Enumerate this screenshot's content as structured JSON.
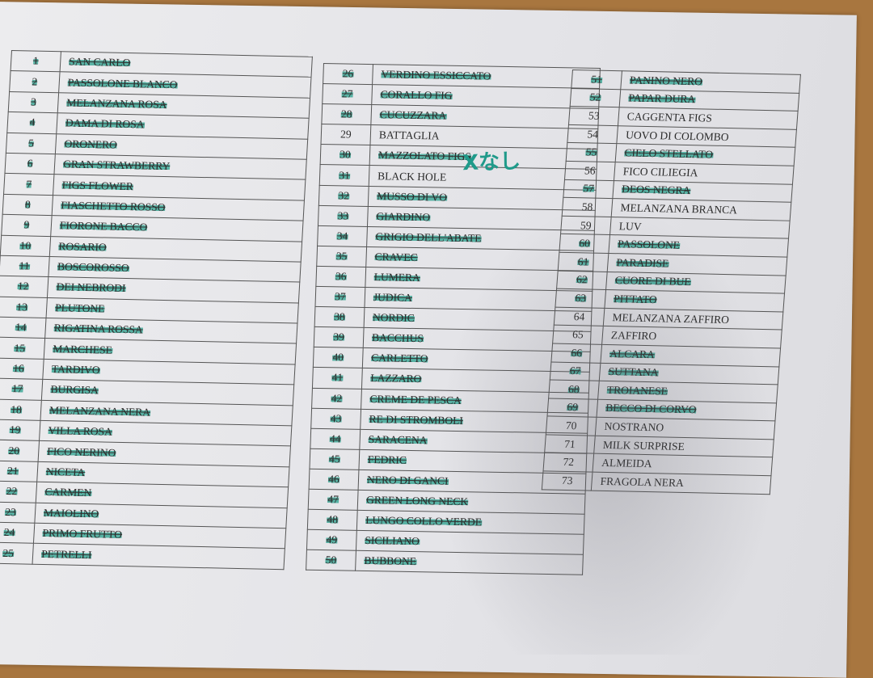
{
  "highlight_color": "#2aa08c",
  "annotation": "Xなし",
  "columns": [
    [
      {
        "n": "1",
        "name": "SAN CARLO",
        "hl": true
      },
      {
        "n": "2",
        "name": "PASSOLONE BLANCO",
        "hl": true
      },
      {
        "n": "3",
        "name": "MELANZANA ROSA",
        "hl": true
      },
      {
        "n": "4",
        "name": "DAMA DI ROSA",
        "hl": true
      },
      {
        "n": "5",
        "name": "ORONERO",
        "hl": true
      },
      {
        "n": "6",
        "name": "GRAN STRAWBERRY",
        "hl": true
      },
      {
        "n": "7",
        "name": "FIGS FLOWER",
        "hl": true
      },
      {
        "n": "8",
        "name": "FIASCHETTO ROSSO",
        "hl": true
      },
      {
        "n": "9",
        "name": "FIORONE BACCO",
        "hl": true
      },
      {
        "n": "10",
        "name": "ROSARIO",
        "hl": true
      },
      {
        "n": "11",
        "name": "BOSCOROSSO",
        "hl": true
      },
      {
        "n": "12",
        "name": "DEI NEBRODI",
        "hl": true
      },
      {
        "n": "13",
        "name": "PLUTONE",
        "hl": true
      },
      {
        "n": "14",
        "name": "RIGATINA ROSSA",
        "hl": true
      },
      {
        "n": "15",
        "name": "MARCHESE",
        "hl": true
      },
      {
        "n": "16",
        "name": "TARDIVO",
        "hl": true
      },
      {
        "n": "17",
        "name": "BURGISA",
        "hl": true
      },
      {
        "n": "18",
        "name": "MELANZANA NERA",
        "hl": true
      },
      {
        "n": "19",
        "name": "VILLA ROSA",
        "hl": true
      },
      {
        "n": "20",
        "name": "FICO NERINO",
        "hl": true
      },
      {
        "n": "21",
        "name": "NICETA",
        "hl": true
      },
      {
        "n": "22",
        "name": "CARMEN",
        "hl": true
      },
      {
        "n": "23",
        "name": "MAIOLINO",
        "hl": true
      },
      {
        "n": "24",
        "name": "PRIMO FRUTTO",
        "hl": true
      },
      {
        "n": "25",
        "name": "PETRELLI",
        "hl": true
      }
    ],
    [
      {
        "n": "26",
        "name": "VERDINO ESSICCATO",
        "hl": true
      },
      {
        "n": "27",
        "name": "CORALLO FIG",
        "hl": true
      },
      {
        "n": "28",
        "name": "CUCUZZARA",
        "hl": true
      },
      {
        "n": "29",
        "name": "BATTAGLIA",
        "hl": false
      },
      {
        "n": "30",
        "name": "MAZZOLATO FIGS",
        "hl": true
      },
      {
        "n": "31",
        "name": "BLACK HOLE",
        "hl": false
      },
      {
        "n": "32",
        "name": "MUSSO DI VO",
        "hl": true
      },
      {
        "n": "33",
        "name": "GIARDINO",
        "hl": true
      },
      {
        "n": "34",
        "name": "GRIGIO DELL'ABATE",
        "hl": true
      },
      {
        "n": "35",
        "name": "CRAVEC",
        "hl": true
      },
      {
        "n": "36",
        "name": "LUMERA",
        "hl": true
      },
      {
        "n": "37",
        "name": "JUDICA",
        "hl": true
      },
      {
        "n": "38",
        "name": "NORDIC",
        "hl": true
      },
      {
        "n": "39",
        "name": "BACCHUS",
        "hl": true
      },
      {
        "n": "40",
        "name": "CARLETTO",
        "hl": true
      },
      {
        "n": "41",
        "name": "LAZZARO",
        "hl": true
      },
      {
        "n": "42",
        "name": "CREME DE PESCA",
        "hl": true
      },
      {
        "n": "43",
        "name": "RE DI STROMBOLI",
        "hl": true
      },
      {
        "n": "44",
        "name": "SARACENA",
        "hl": true
      },
      {
        "n": "45",
        "name": "FEDRIC",
        "hl": true
      },
      {
        "n": "46",
        "name": "NERO DI GANCI",
        "hl": true
      },
      {
        "n": "47",
        "name": "GREEN LONG NECK",
        "hl": true
      },
      {
        "n": "48",
        "name": "LUNGO COLLO VERDE",
        "hl": true
      },
      {
        "n": "49",
        "name": "SICILIANO",
        "hl": true
      },
      {
        "n": "50",
        "name": "BUBBONE",
        "hl": true
      }
    ],
    [
      {
        "n": "51",
        "name": "PANINO NERO",
        "hl": true
      },
      {
        "n": "52",
        "name": "PAPAR DURA",
        "hl": true
      },
      {
        "n": "53",
        "name": "CAGGENTA FIGS",
        "hl": false
      },
      {
        "n": "54",
        "name": "UOVO DI COLOMBO",
        "hl": false
      },
      {
        "n": "55",
        "name": "CIELO STELLATO",
        "hl": true
      },
      {
        "n": "56",
        "name": "FICO CILIEGIA",
        "hl": false
      },
      {
        "n": "57",
        "name": "DEOS NEGRA",
        "hl": true
      },
      {
        "n": "58",
        "name": "MELANZANA BRANCA",
        "hl": false
      },
      {
        "n": "59",
        "name": "LUV",
        "hl": false
      },
      {
        "n": "60",
        "name": "PASSOLONE",
        "hl": true
      },
      {
        "n": "61",
        "name": "PARADISE",
        "hl": true
      },
      {
        "n": "62",
        "name": "CUORE DI BUE",
        "hl": true
      },
      {
        "n": "63",
        "name": "PITTATO",
        "hl": true
      },
      {
        "n": "64",
        "name": "MELANZANA ZAFFIRO",
        "hl": false
      },
      {
        "n": "65",
        "name": "ZAFFIRO",
        "hl": false
      },
      {
        "n": "66",
        "name": "ALCARA",
        "hl": true
      },
      {
        "n": "67",
        "name": "SUTTANA",
        "hl": true
      },
      {
        "n": "68",
        "name": "TROIANESE",
        "hl": true
      },
      {
        "n": "69",
        "name": "BECCO DI CORVO",
        "hl": true
      },
      {
        "n": "70",
        "name": "NOSTRANO",
        "hl": false
      },
      {
        "n": "71",
        "name": "MILK SURPRISE",
        "hl": false
      },
      {
        "n": "72",
        "name": "ALMEIDA",
        "hl": false
      },
      {
        "n": "73",
        "name": "FRAGOLA NERA",
        "hl": false
      }
    ]
  ]
}
